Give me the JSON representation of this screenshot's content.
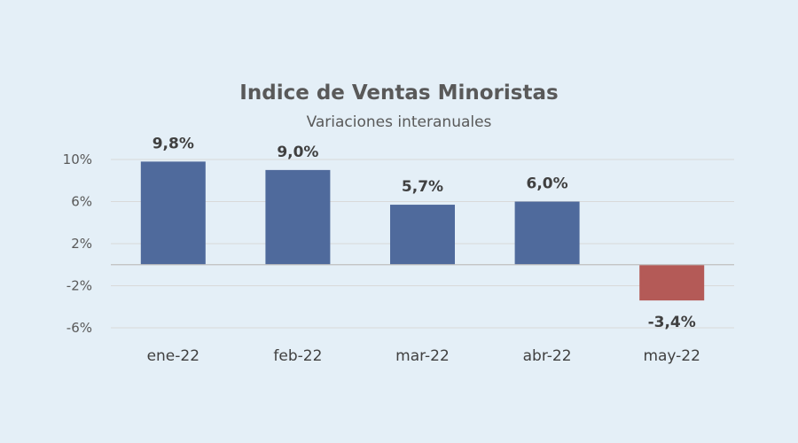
{
  "chart_data": {
    "type": "bar",
    "title": "Indice de Ventas Minoristas",
    "subtitle": "Variaciones interanuales",
    "categories": [
      "ene-22",
      "feb-22",
      "mar-22",
      "abr-22",
      "may-22"
    ],
    "values": [
      9.8,
      9.0,
      5.7,
      6.0,
      -3.4
    ],
    "data_labels": [
      "9,8%",
      "9,0%",
      "5,7%",
      "6,0%",
      "-3,4%"
    ],
    "yticks": [
      10,
      6,
      2,
      -2,
      -6
    ],
    "ytick_labels": [
      "10%",
      "6%",
      "2%",
      "-2%",
      "-6%"
    ],
    "ylim": [
      -6,
      10
    ],
    "xlabel": "",
    "ylabel": "",
    "grid": true,
    "legend": "none",
    "colors": {
      "positive": "#4f6a9c",
      "negative": "#b45a57",
      "grid": "#d9d9d9",
      "axis": "#bfbfbf"
    }
  }
}
